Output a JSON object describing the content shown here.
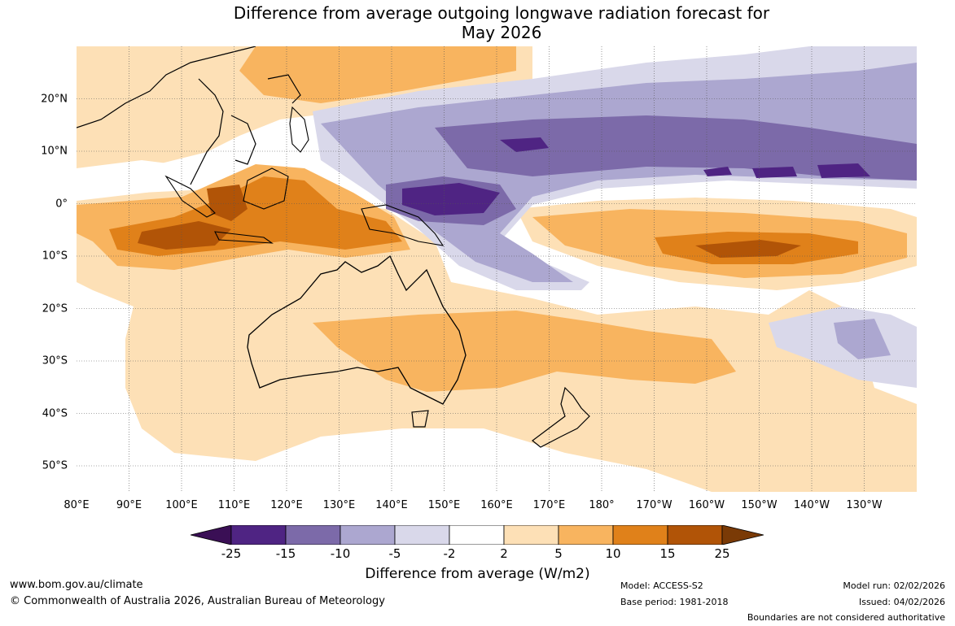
{
  "title": {
    "line1": "Difference from average outgoing longwave radiation forecast for",
    "line2": "May 2026"
  },
  "map": {
    "longitude_labels": [
      "80°E",
      "90°E",
      "100°E",
      "110°E",
      "120°E",
      "130°E",
      "140°E",
      "150°E",
      "160°E",
      "170°E",
      "180°",
      "170°W",
      "160°W",
      "150°W",
      "140°W",
      "130°W"
    ],
    "latitude_labels": [
      "20°N",
      "10°N",
      "0°",
      "10°S",
      "20°S",
      "30°S",
      "40°S",
      "50°S"
    ],
    "extent": {
      "lon_min": 80,
      "lon_max": 240,
      "lat_min": -55,
      "lat_max": 30
    }
  },
  "colorbar": {
    "labels": [
      "-25",
      "-15",
      "-10",
      "-5",
      "-2",
      "2",
      "5",
      "10",
      "15",
      "25"
    ],
    "colors": [
      "#3a0f55",
      "#4f2483",
      "#7c6aa9",
      "#aca7d0",
      "#d9d8ea",
      "#ffffff",
      "#fde0b6",
      "#f8b45f",
      "#e0811a",
      "#b15407",
      "#7a3a06"
    ],
    "title": "Difference from average (W/m2)"
  },
  "footer": {
    "website": "www.bom.gov.au/climate",
    "copyright": "© Commonwealth of Australia 2026, Australian Bureau of Meteorology",
    "model": "Model: ACCESS-S2",
    "base_period": "Base period: 1981-2018",
    "model_run": "Model run: 02/02/2026",
    "issued": "Issued: 04/02/2026",
    "disclaimer": "Boundaries are not considered authoritative"
  }
}
